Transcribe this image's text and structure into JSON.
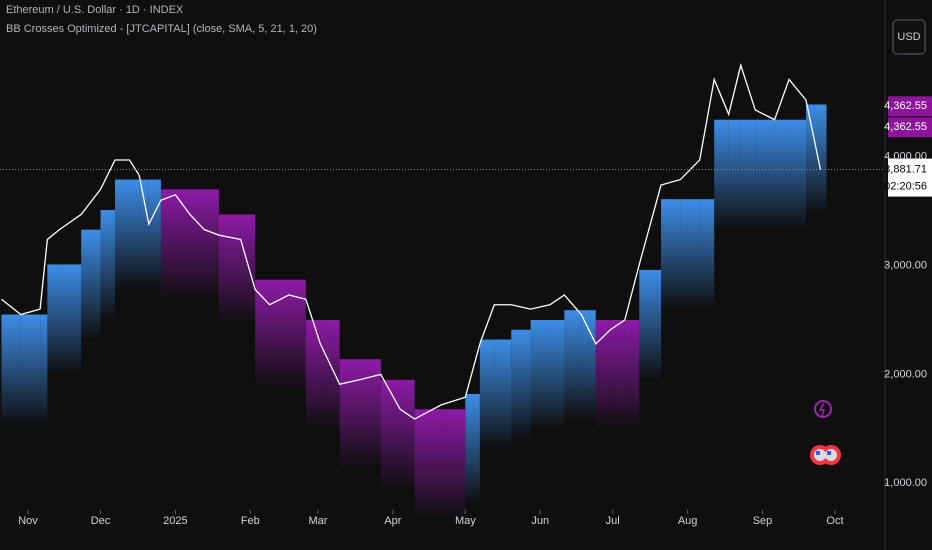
{
  "chart_data": {
    "type": "line",
    "title": "Ethereum / U.S. Dollar · 1D · INDEX",
    "subtitle": "BB Crosses Optimized - [JTCAPITAL] (close, SMA, 5, 21, 1, 20)",
    "currency": "USD",
    "x": [
      -11,
      -3,
      5,
      8,
      13,
      22,
      30,
      36,
      42,
      46,
      50,
      55,
      61,
      67,
      73,
      79,
      88,
      94,
      100,
      108,
      115,
      121,
      129,
      137,
      146,
      154,
      160,
      171,
      181,
      187,
      193,
      200,
      208,
      216,
      222,
      229,
      235,
      241,
      247,
      253,
      262,
      270,
      278,
      284,
      290,
      295,
      301,
      309,
      315,
      322,
      328
    ],
    "series": [
      {
        "color": "#ffffff",
        "values": [
          2690,
          2550,
          2600,
          3240,
          3330,
          3470,
          3700,
          3970,
          3970,
          3830,
          3380,
          3600,
          3650,
          3470,
          3330,
          3280,
          3240,
          2780,
          2640,
          2730,
          2690,
          2280,
          1910,
          1950,
          2000,
          1680,
          1590,
          1720,
          1790,
          2280,
          2640,
          2640,
          2600,
          2640,
          2730,
          2550,
          2280,
          2410,
          2500,
          3010,
          3740,
          3790,
          3970,
          4710,
          4390,
          4840,
          4430,
          4340,
          4710,
          4520,
          3880
        ]
      },
      {
        "color": "#3d8ee8",
        "values": [
          2550,
          2550,
          2550,
          3010,
          3010,
          3330,
          3510,
          3790,
          3790,
          3790,
          3790,
          null,
          null,
          null,
          null,
          null,
          null,
          null,
          null,
          null,
          null,
          null,
          null,
          null,
          null,
          null,
          null,
          null,
          1820,
          2320,
          2320,
          2410,
          2500,
          2500,
          2590,
          2590,
          null,
          null,
          null,
          2960,
          3610,
          3610,
          3610,
          4340,
          4340,
          4340,
          4340,
          4340,
          4340,
          4480,
          4480
        ]
      },
      {
        "color": "#8e1aa8",
        "values": [
          null,
          null,
          null,
          null,
          null,
          null,
          null,
          null,
          null,
          null,
          null,
          3700,
          3700,
          3700,
          3700,
          3470,
          3470,
          2870,
          2870,
          2870,
          2500,
          2500,
          2140,
          2140,
          1950,
          1950,
          1680,
          1680,
          null,
          null,
          null,
          null,
          null,
          null,
          null,
          null,
          2500,
          2500,
          2500,
          null,
          null,
          null,
          null,
          null,
          null,
          null,
          null,
          null,
          null,
          null,
          null
        ]
      }
    ],
    "xlim": [
      -11.6,
      354.7
    ],
    "xticks": [
      {
        "value": 0,
        "label": "Nov"
      },
      {
        "value": 30,
        "label": "Dec"
      },
      {
        "value": 61,
        "label": "2025"
      },
      {
        "value": 92,
        "label": "Feb"
      },
      {
        "value": 120,
        "label": "Mar"
      },
      {
        "value": 151,
        "label": "Apr"
      },
      {
        "value": 181,
        "label": "May"
      },
      {
        "value": 212,
        "label": "Jun"
      },
      {
        "value": 242,
        "label": "Jul"
      },
      {
        "value": 273,
        "label": "Aug"
      },
      {
        "value": 304,
        "label": "Sep"
      },
      {
        "value": 334,
        "label": "Oct"
      }
    ],
    "ylim": [
      800,
      5440
    ],
    "yticks": [
      {
        "value": 1000,
        "label": "1,000.00"
      },
      {
        "value": 2000,
        "label": "2,000.00"
      },
      {
        "value": 3000,
        "label": "3,000.00"
      },
      {
        "value": 4000,
        "label": "4,000.00"
      }
    ],
    "price_tags": [
      {
        "value": 4362.55,
        "label": "4,362.55",
        "color": "#8e1599"
      },
      {
        "value": 4362.55,
        "label": "4,362.55",
        "color": "#8e1599"
      },
      {
        "value": 3881.71,
        "label": "3,881.71",
        "color": "#ffffff"
      }
    ],
    "countdown": "02:20:56"
  }
}
